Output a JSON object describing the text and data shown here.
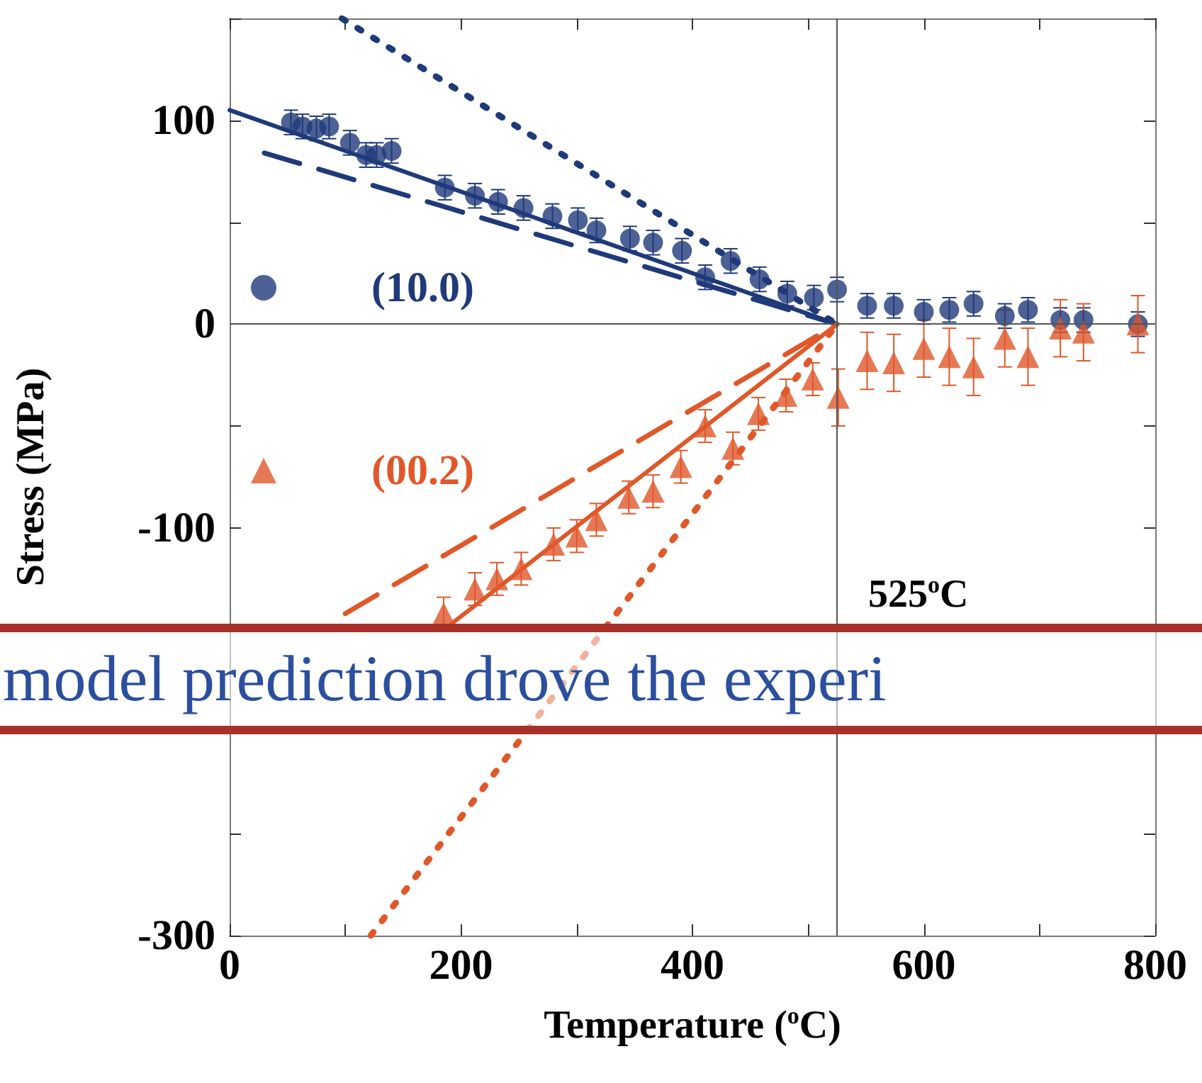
{
  "chart_data": {
    "type": "scatter",
    "xlabel": "Temperature ($^{o}$C)",
    "ylabel": "Stress (MPa)",
    "xlim": [
      0,
      800
    ],
    "ylim": [
      -300,
      150
    ],
    "xticks": [
      0,
      {
        "value": 100,
        "label": null
      },
      200,
      {
        "value": 300,
        "label": null
      },
      400,
      {
        "value": 500,
        "label": null
      },
      600,
      {
        "value": 700,
        "label": null
      },
      800
    ],
    "yticks": [
      -300,
      {
        "value": -250,
        "label": null
      },
      {
        "value": -200,
        "label": null
      },
      {
        "value": -150,
        "label": null
      },
      -100,
      {
        "value": -50,
        "label": null
      },
      0,
      {
        "value": 50,
        "label": null
      },
      100,
      {
        "value": 150,
        "label": null
      }
    ],
    "legend": "left",
    "series": [
      {
        "name": "(10.0)",
        "marker": "circle",
        "color": "#1f3a7a",
        "x": [
          53,
          63,
          75,
          86,
          104,
          118,
          127,
          140,
          186,
          212,
          232,
          254,
          279,
          301,
          317,
          346,
          366,
          391,
          411,
          433,
          458,
          482,
          505,
          525,
          551,
          574,
          600,
          622,
          643,
          670,
          690,
          718,
          738,
          785
        ],
        "values": [
          99,
          97,
          96,
          97,
          89,
          83,
          83,
          85,
          67,
          63,
          60,
          57,
          53,
          51,
          46,
          42,
          40,
          36,
          23,
          31,
          22,
          15,
          13,
          17,
          9,
          9,
          6,
          7,
          10,
          4,
          7,
          2,
          2,
          0
        ],
        "errors": [
          6,
          6,
          6,
          6,
          6,
          6,
          6,
          6,
          6,
          6,
          6,
          6,
          6,
          6,
          6,
          6,
          6,
          6,
          6,
          6,
          6,
          6,
          6,
          6,
          6,
          6,
          6,
          6,
          6,
          6,
          6,
          6,
          6,
          6
        ]
      },
      {
        "name": "(00.2)",
        "marker": "triangle",
        "color": "#e0582a",
        "x": [
          185,
          212,
          231,
          252,
          280,
          300,
          317,
          345,
          366,
          390,
          411,
          435,
          457,
          481,
          504,
          526,
          551,
          574,
          600,
          622,
          643,
          670,
          690,
          718,
          738,
          785
        ],
        "values": [
          -142,
          -130,
          -125,
          -120,
          -108,
          -104,
          -96,
          -85,
          -82,
          -70,
          -50,
          -61,
          -44,
          -35,
          -27,
          -36,
          -18,
          -19,
          -12,
          -16,
          -21,
          -7,
          -16,
          -2,
          -4,
          0
        ],
        "errors": [
          8,
          8,
          8,
          8,
          8,
          8,
          8,
          8,
          8,
          8,
          8,
          8,
          8,
          8,
          8,
          14,
          14,
          14,
          14,
          14,
          14,
          14,
          14,
          14,
          14,
          14
        ]
      },
      {
        "type": "line",
        "marker": "none",
        "line_style": "solid",
        "color": "#1f3a7a",
        "x": [
          0,
          525
        ],
        "values": [
          105,
          0
        ]
      },
      {
        "type": "line",
        "marker": "none",
        "line_style": "dashed",
        "color": "#1f3a7a",
        "x": [
          30,
          525
        ],
        "values": [
          84,
          0
        ]
      },
      {
        "type": "line",
        "marker": "none",
        "line_style": "dotted",
        "color": "#1f3a7a",
        "x": [
          97,
          525
        ],
        "values": [
          150,
          0
        ]
      },
      {
        "type": "line",
        "marker": "none",
        "line_style": "solid",
        "color": "#e0582a",
        "x": [
          185,
          525
        ],
        "values": [
          -150,
          0
        ]
      },
      {
        "type": "line",
        "marker": "none",
        "line_style": "dashed",
        "color": "#e0582a",
        "x": [
          100,
          525
        ],
        "values": [
          -142,
          0
        ]
      },
      {
        "type": "line",
        "marker": "none",
        "line_style": "dotted",
        "color": "#e0582a",
        "x": [
          122,
          525
        ],
        "values": [
          -300,
          0
        ]
      }
    ],
    "ref_lines": [
      {
        "axis": "x",
        "value": 525,
        "label": "525$^{o}$C",
        "color": "#555555"
      },
      {
        "axis": "y",
        "value": 0,
        "color": "#555555"
      }
    ],
    "annotations": [
      "model prediction drove the experi"
    ]
  }
}
